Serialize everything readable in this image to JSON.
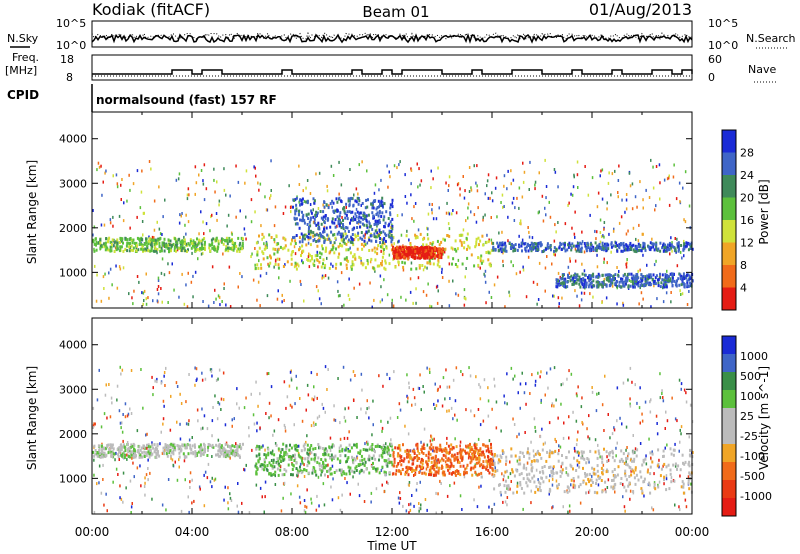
{
  "header": {
    "station": "Kodiak (fitACF)",
    "beam": "Beam 01",
    "date": "01/Aug/2013"
  },
  "strips": {
    "nsky_label": "N.Sky",
    "nsky_ticks": [
      "10^5",
      "10^0"
    ],
    "nsearch_label": "N.Search",
    "nsearch_ticks": [
      "10^5",
      "10^0"
    ],
    "freq_label_1": "Freq.",
    "freq_label_2": "[MHz]",
    "freq_ticks": [
      "18",
      "8"
    ],
    "nave_label": "Nave",
    "nave_ticks": [
      "60",
      "0"
    ],
    "cpid_label": "CPID",
    "cpid_text": "normalsound (fast) 157 RF"
  },
  "colors": {
    "power": [
      "#1a2bd6",
      "#3f65c7",
      "#3f8a5a",
      "#5cc03c",
      "#cfe23a",
      "#f0a526",
      "#f16b1a",
      "#e51c14"
    ],
    "velocity": [
      "#1a2bd6",
      "#3f65c7",
      "#3a8f48",
      "#5cc03c",
      "#bcbcbc",
      "#bcbcbc",
      "#f0a526",
      "#f16b1a",
      "#ea3a14",
      "#e51c14"
    ]
  },
  "chart_data": [
    {
      "type": "heatmap",
      "title": "",
      "xlabel": "Time UT",
      "ylabel": "Slant Range [km]",
      "xlim": [
        0,
        24
      ],
      "ylim": [
        200,
        4600
      ],
      "x_ticks": [
        "00:00",
        "04:00",
        "08:00",
        "12:00",
        "16:00",
        "20:00",
        "00:00"
      ],
      "y_ticks": [
        "1000",
        "2000",
        "3000",
        "4000"
      ],
      "colorbar": {
        "label": "Power [dB]",
        "ticks": [
          "28",
          "24",
          "20",
          "16",
          "12",
          "8",
          "4"
        ]
      },
      "bands": [
        {
          "t0": 0.0,
          "t1": 6.0,
          "r0": 1500,
          "r1": 1800,
          "level": 3
        },
        {
          "t0": 6.5,
          "t1": 16.0,
          "r0": 1100,
          "r1": 1900,
          "level": 4
        },
        {
          "t0": 12.0,
          "t1": 14.0,
          "r0": 1350,
          "r1": 1600,
          "level": 7
        },
        {
          "t0": 8.0,
          "t1": 12.0,
          "r0": 1700,
          "r1": 2700,
          "level": 1
        },
        {
          "t0": 16.0,
          "t1": 24.0,
          "r0": 1500,
          "r1": 1700,
          "level": 1
        },
        {
          "t0": 18.5,
          "t1": 24.0,
          "r0": 700,
          "r1": 1000,
          "level": 1
        }
      ]
    },
    {
      "type": "heatmap",
      "title": "",
      "xlabel": "Time UT",
      "ylabel": "Slant Range [km]",
      "xlim": [
        0,
        24
      ],
      "ylim": [
        200,
        4600
      ],
      "x_ticks": [
        "00:00",
        "04:00",
        "08:00",
        "12:00",
        "16:00",
        "20:00",
        "00:00"
      ],
      "y_ticks": [
        "1000",
        "2000",
        "3000",
        "4000"
      ],
      "colorbar": {
        "label": "Velocity [m s^-1]",
        "ticks": [
          "1000",
          "500",
          "100",
          "25",
          "-25",
          "-100",
          "-500",
          "-1000"
        ]
      },
      "bands": [
        {
          "t0": 0.0,
          "t1": 6.0,
          "r0": 1500,
          "r1": 1800,
          "level": 4
        },
        {
          "t0": 6.5,
          "t1": 12.0,
          "r0": 1100,
          "r1": 1800,
          "level": 3
        },
        {
          "t0": 12.0,
          "t1": 16.0,
          "r0": 1100,
          "r1": 1800,
          "level": 7
        },
        {
          "t0": 16.0,
          "t1": 24.0,
          "r0": 700,
          "r1": 1700,
          "level": 5
        }
      ]
    }
  ]
}
